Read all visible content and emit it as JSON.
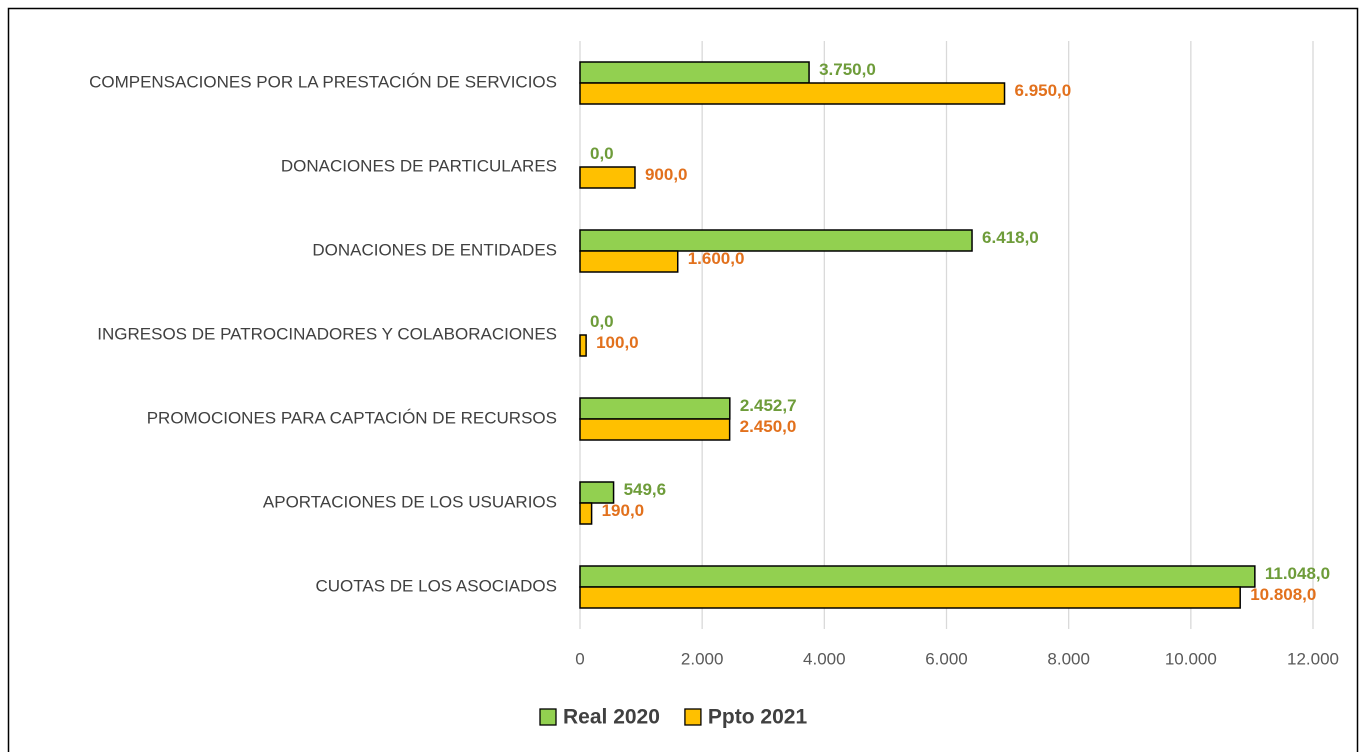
{
  "chart_data": {
    "type": "hbar",
    "categories": [
      "COMPENSACIONES POR LA PRESTACIÓN DE SERVICIOS",
      "DONACIONES DE PARTICULARES",
      "DONACIONES DE ENTIDADES",
      "INGRESOS DE PATROCINADORES Y COLABORACIONES",
      "PROMOCIONES PARA CAPTACIÓN DE RECURSOS",
      "APORTACIONES DE LOS USUARIOS",
      "CUOTAS DE LOS ASOCIADOS"
    ],
    "series": [
      {
        "name": "Real 2020",
        "color": "#92d050",
        "label_color": "#6e9c3a",
        "values": [
          3750,
          0,
          6418,
          0,
          2452.7,
          549.6,
          11048
        ],
        "value_labels": [
          "3.750,0",
          "0,0",
          "6.418,0",
          "0,0",
          "2.452,7",
          "549,6",
          "11.048,0"
        ]
      },
      {
        "name": "Ppto 2021",
        "color": "#ffc000",
        "label_color": "#e2711d",
        "values": [
          6950,
          900,
          1600,
          100,
          2450,
          190,
          10808
        ],
        "value_labels": [
          "6.950,0",
          "900,0",
          "1.600,0",
          "100,0",
          "2.450,0",
          "190,0",
          "10.808,0"
        ]
      }
    ],
    "xlim": [
      0,
      12000
    ],
    "xticks": [
      0,
      {
        "value": 2000,
        "label": "2.000"
      },
      {
        "value": 4000,
        "label": "4.000"
      },
      {
        "value": 6000,
        "label": "6.000"
      },
      {
        "value": 8000,
        "label": "8.000"
      },
      {
        "value": 10000,
        "label": "10.000"
      },
      {
        "value": 12000,
        "label": "12.000"
      }
    ],
    "grid": true,
    "legend": "bottom"
  }
}
